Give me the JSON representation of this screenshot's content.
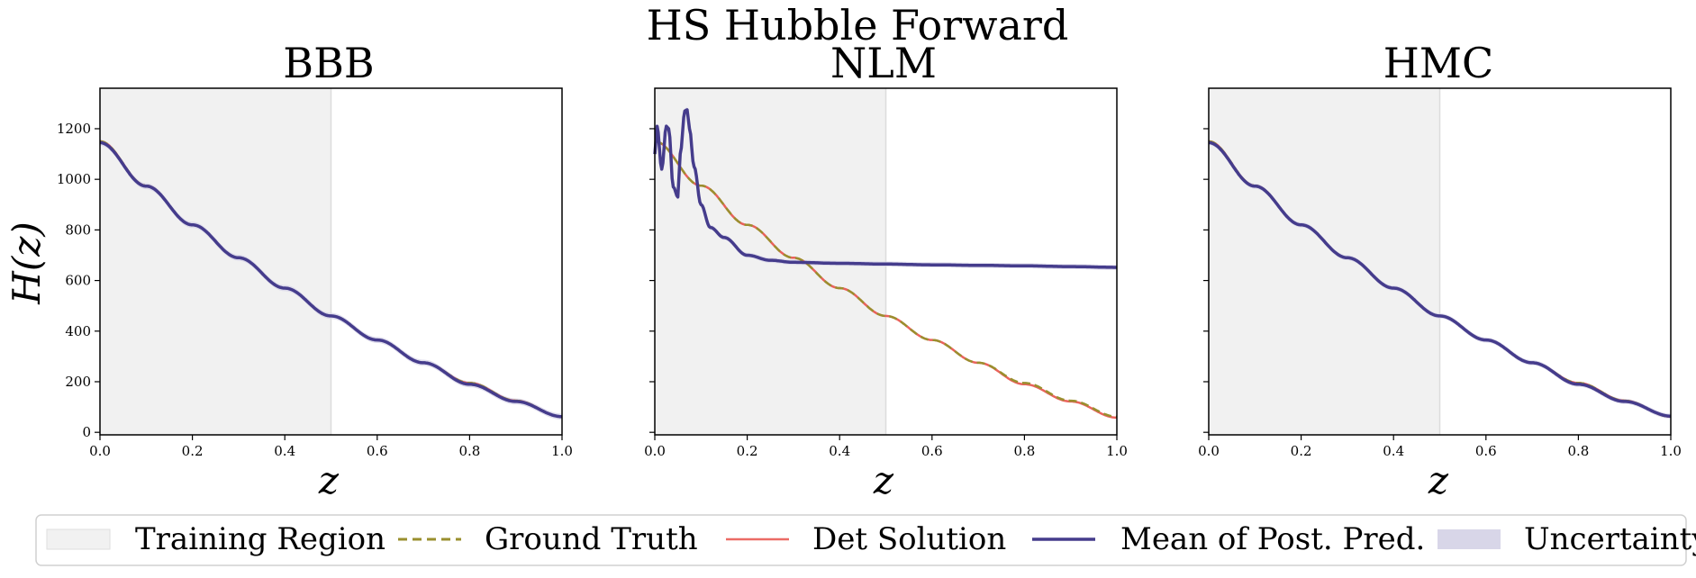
{
  "figure": {
    "suptitle": "HS Hubble Forward",
    "ylabel": "H(z)",
    "xlabel": "z"
  },
  "colors": {
    "training_region": "#f1f1f1",
    "ground_truth": "#9a8f2e",
    "det_solution": "#e8514a",
    "mean_post_pred": "#453c8c",
    "uncertainty": "#d8d6e8"
  },
  "legend": {
    "placement": "bottom-center",
    "items": [
      {
        "key": "training_region",
        "label": "Training Region"
      },
      {
        "key": "ground_truth",
        "label": "Ground Truth"
      },
      {
        "key": "det_solution",
        "label": "Det Solution"
      },
      {
        "key": "mean_post_pred",
        "label": "Mean of Post. Pred."
      },
      {
        "key": "uncertainty",
        "label": "Uncertainty"
      }
    ]
  },
  "chart_data": [
    {
      "type": "line",
      "title": "BBB",
      "xlabel": "z",
      "ylabel": "H(z)",
      "xlim": [
        0.0,
        1.0
      ],
      "ylim": [
        -10,
        1360
      ],
      "xticks": [
        "0.0",
        "0.2",
        "0.4",
        "0.6",
        "0.8",
        "1.0"
      ],
      "yticks": [
        "0",
        "200",
        "400",
        "600",
        "800",
        "1000",
        "1200"
      ],
      "training_region": [
        0.0,
        0.5
      ],
      "series": [
        {
          "name": "Ground Truth",
          "x": [
            0,
            0.1,
            0.2,
            0.3,
            0.4,
            0.5,
            0.6,
            0.7,
            0.8,
            0.9,
            1.0
          ],
          "y": [
            1150,
            975,
            820,
            690,
            570,
            460,
            365,
            275,
            195,
            125,
            62
          ]
        },
        {
          "name": "Det Solution",
          "x": [
            0,
            0.1,
            0.2,
            0.3,
            0.4,
            0.5,
            0.6,
            0.7,
            0.8,
            0.9,
            1.0
          ],
          "y": [
            1150,
            975,
            820,
            690,
            570,
            460,
            365,
            275,
            195,
            125,
            62
          ]
        },
        {
          "name": "Mean of Post. Pred.",
          "x": [
            0,
            0.1,
            0.2,
            0.3,
            0.4,
            0.5,
            0.6,
            0.7,
            0.8,
            0.9,
            1.0
          ],
          "y": [
            1145,
            973,
            820,
            690,
            570,
            460,
            365,
            275,
            190,
            122,
            62
          ]
        }
      ],
      "uncertainty_halfwidth": 12
    },
    {
      "type": "line",
      "title": "NLM",
      "xlabel": "z",
      "ylabel": "",
      "xlim": [
        0.0,
        1.0
      ],
      "ylim": [
        -10,
        1360
      ],
      "xticks": [
        "0.0",
        "0.2",
        "0.4",
        "0.6",
        "0.8",
        "1.0"
      ],
      "yticks": [],
      "training_region": [
        0.0,
        0.5
      ],
      "series": [
        {
          "name": "Ground Truth",
          "x": [
            0,
            0.1,
            0.2,
            0.3,
            0.4,
            0.5,
            0.6,
            0.7,
            0.8,
            0.9,
            1.0
          ],
          "y": [
            1150,
            975,
            820,
            690,
            570,
            460,
            365,
            275,
            195,
            125,
            62
          ]
        },
        {
          "name": "Det Solution",
          "x": [
            0,
            0.1,
            0.2,
            0.3,
            0.4,
            0.5,
            0.6,
            0.7,
            0.8,
            0.9,
            1.0
          ],
          "y": [
            1150,
            975,
            820,
            690,
            570,
            460,
            365,
            275,
            190,
            122,
            58
          ]
        },
        {
          "name": "Mean of Post. Pred.",
          "x": [
            0,
            0.005,
            0.015,
            0.025,
            0.03,
            0.04,
            0.05,
            0.055,
            0.065,
            0.07,
            0.075,
            0.085,
            0.1,
            0.12,
            0.15,
            0.2,
            0.25,
            0.3,
            0.4,
            0.5,
            0.6,
            0.7,
            0.8,
            0.9,
            1.0
          ],
          "y": [
            1100,
            1210,
            1040,
            1210,
            1200,
            970,
            930,
            1100,
            1270,
            1275,
            1200,
            1050,
            900,
            810,
            770,
            700,
            680,
            672,
            668,
            665,
            662,
            660,
            658,
            655,
            652
          ]
        }
      ],
      "uncertainty_halfwidth": 10
    },
    {
      "type": "line",
      "title": "HMC",
      "xlabel": "z",
      "ylabel": "",
      "xlim": [
        0.0,
        1.0
      ],
      "ylim": [
        -10,
        1360
      ],
      "xticks": [
        "0.0",
        "0.2",
        "0.4",
        "0.6",
        "0.8",
        "1.0"
      ],
      "yticks": [],
      "training_region": [
        0.0,
        0.5
      ],
      "series": [
        {
          "name": "Ground Truth",
          "x": [
            0,
            0.1,
            0.2,
            0.3,
            0.4,
            0.5,
            0.6,
            0.7,
            0.8,
            0.9,
            1.0
          ],
          "y": [
            1150,
            975,
            820,
            690,
            570,
            460,
            365,
            275,
            195,
            125,
            62
          ]
        },
        {
          "name": "Det Solution",
          "x": [
            0,
            0.1,
            0.2,
            0.3,
            0.4,
            0.5,
            0.6,
            0.7,
            0.8,
            0.9,
            1.0
          ],
          "y": [
            1150,
            975,
            820,
            690,
            570,
            460,
            365,
            275,
            195,
            125,
            62
          ]
        },
        {
          "name": "Mean of Post. Pred.",
          "x": [
            0,
            0.1,
            0.2,
            0.3,
            0.4,
            0.5,
            0.6,
            0.7,
            0.8,
            0.9,
            1.0
          ],
          "y": [
            1145,
            973,
            820,
            690,
            570,
            460,
            365,
            275,
            190,
            122,
            64
          ]
        }
      ],
      "uncertainty_halfwidth": 10
    }
  ]
}
